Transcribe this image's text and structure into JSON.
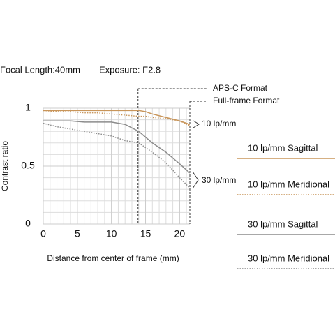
{
  "chart_data": {
    "type": "line",
    "header": [
      "Focal Length:40mm",
      "Exposure: F2.8"
    ],
    "x_label": "Distance from center of frame (mm)",
    "y_label": "Contrast ratio",
    "x": [
      0,
      2,
      4,
      6,
      8,
      10,
      12,
      14,
      15,
      16,
      18,
      20,
      21.5
    ],
    "series": [
      {
        "name": "10 lp/mm Sagittal",
        "color": "#c8955a",
        "dashed": false,
        "values": [
          0.98,
          0.98,
          0.98,
          0.98,
          0.98,
          0.98,
          0.98,
          0.98,
          0.97,
          0.95,
          0.92,
          0.89,
          0.86
        ]
      },
      {
        "name": "10 lp/mm Meridional",
        "color": "#c8955a",
        "dashed": true,
        "values": [
          0.98,
          0.97,
          0.97,
          0.96,
          0.96,
          0.95,
          0.94,
          0.93,
          0.93,
          0.92,
          0.91,
          0.89,
          0.85
        ]
      },
      {
        "name": "30 lp/mm Sagittal",
        "color": "#8c8c8c",
        "dashed": false,
        "values": [
          0.89,
          0.89,
          0.89,
          0.88,
          0.88,
          0.88,
          0.86,
          0.8,
          0.75,
          0.7,
          0.62,
          0.52,
          0.44
        ]
      },
      {
        "name": "30 lp/mm Meridional",
        "color": "#8c8c8c",
        "dashed": true,
        "values": [
          0.87,
          0.84,
          0.82,
          0.8,
          0.78,
          0.76,
          0.72,
          0.7,
          0.66,
          0.62,
          0.53,
          0.4,
          0.31
        ]
      }
    ],
    "xlim": [
      0,
      21.5
    ],
    "ylim": [
      0,
      1
    ],
    "xticks": [
      0,
      5,
      10,
      15,
      20
    ],
    "yticks": [
      0,
      0.5,
      1
    ],
    "grid": true,
    "x_minor_step": 1,
    "y_minor_step": 0.1,
    "formats": [
      {
        "text": "APS-C Format",
        "x": 13.9
      },
      {
        "text": "Full-frame Format",
        "x": 21.5
      }
    ],
    "group_labels": [
      "10 lp/mm",
      "30 lp/mm"
    ]
  }
}
